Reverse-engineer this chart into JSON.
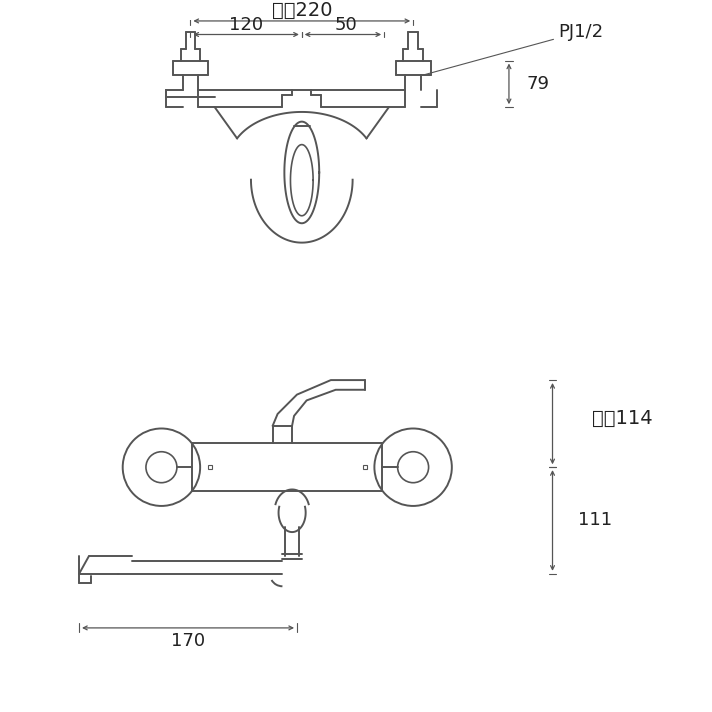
{
  "bg_color": "#ffffff",
  "line_color": "#555555",
  "lw": 1.4,
  "fig_width": 7.12,
  "fig_height": 7.12,
  "top_view": {
    "label_220": "最大220",
    "label_120": "120",
    "label_50": "50",
    "label_79": "79",
    "label_pj": "PJ1/2"
  },
  "side_view": {
    "label_114": "最大114",
    "label_111": "111",
    "label_170": "170"
  }
}
